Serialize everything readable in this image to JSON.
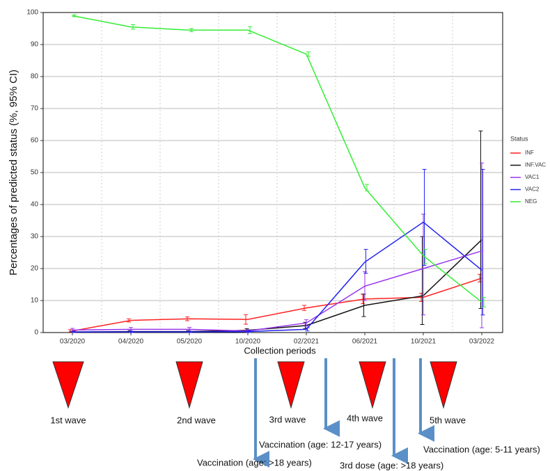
{
  "chart_data": {
    "type": "line",
    "x_label": "Collection periods",
    "y_label": "Percentages of predicted status (%, 95% CI)",
    "categories": [
      "03/2020",
      "04/2020",
      "05/2020",
      "10/2020",
      "02/2021",
      "06/2021",
      "10/2021",
      "03/2022"
    ],
    "ylim": [
      0,
      100
    ],
    "yticks": [
      0,
      10,
      20,
      30,
      40,
      50,
      60,
      70,
      80,
      90,
      100
    ],
    "grid": true,
    "legend_title": "Status",
    "legend": "right",
    "series": [
      {
        "name": "INF",
        "color": "#ff2020",
        "values": [
          0.5,
          3.8,
          4.3,
          4.1,
          7.7,
          10.5,
          11,
          17
        ],
        "ci_low": [
          0.1,
          3.3,
          3.7,
          2.6,
          6.9,
          9,
          9.7,
          15.8
        ],
        "ci_high": [
          0.9,
          4.3,
          4.9,
          5.6,
          8.5,
          12,
          12.3,
          18.2
        ]
      },
      {
        "name": "INF.VAC",
        "color": "#111111",
        "values": [
          0.2,
          0.3,
          0.3,
          0.7,
          2.2,
          8.5,
          11.5,
          29
        ],
        "ci_low": [
          0,
          0,
          0,
          0.2,
          1.2,
          5,
          2.5,
          7.5
        ],
        "ci_high": [
          0.4,
          0.6,
          0.6,
          1.2,
          3.2,
          12,
          30,
          63
        ]
      },
      {
        "name": "VAC1",
        "color": "#9933ee",
        "values": [
          0.8,
          1,
          1,
          0.5,
          3,
          14.5,
          20,
          25.5
        ],
        "ci_low": [
          0.3,
          0.4,
          0.4,
          0.1,
          2,
          10,
          5.5,
          1.5
        ],
        "ci_high": [
          1.3,
          1.6,
          1.6,
          0.9,
          4,
          19,
          37,
          53
        ]
      },
      {
        "name": "VAC2",
        "color": "#2222ee",
        "values": [
          0.2,
          0.2,
          0.2,
          0.3,
          1,
          22,
          34.5,
          19.5
        ],
        "ci_low": [
          0,
          0,
          0,
          0,
          0.5,
          18.5,
          21,
          5.5
        ],
        "ci_high": [
          0.4,
          0.4,
          0.4,
          0.6,
          1.5,
          26,
          51,
          51
        ]
      },
      {
        "name": "NEG",
        "color": "#33ee33",
        "values": [
          99,
          95.5,
          94.5,
          94.5,
          87,
          45.2,
          24,
          9.5
        ],
        "ci_low": [
          98.7,
          94.8,
          94,
          93.4,
          86.3,
          44.3,
          21.5,
          8
        ],
        "ci_high": [
          99.3,
          96.2,
          95,
          95.6,
          87.7,
          46.3,
          26,
          11
        ]
      }
    ],
    "annotations": [
      "1st wave",
      "2nd wave",
      "3rd wave",
      "4th wave",
      "5th wave",
      "Vaccination (age: >18 years)",
      "Vaccination (age: 12-17 years)",
      "3rd dose (age: >18 years)",
      "Vaccination (age: 5-11 years)"
    ]
  }
}
